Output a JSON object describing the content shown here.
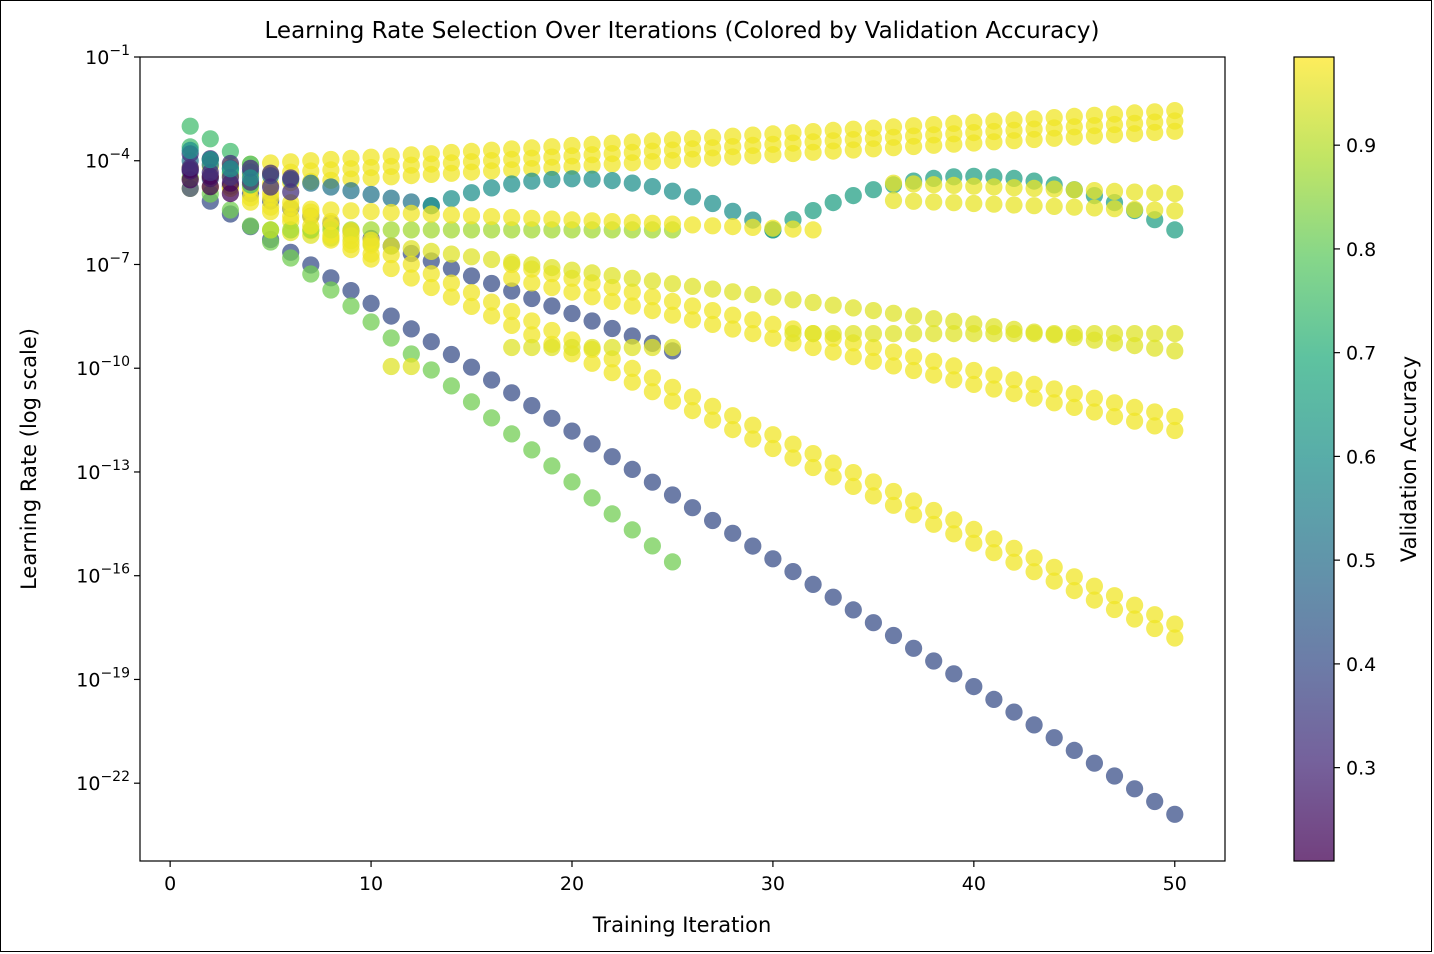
{
  "chart_data": {
    "type": "scatter",
    "title": "Learning Rate Selection Over Iterations (Colored by Validation Accuracy)",
    "xlabel": "Training Iteration",
    "ylabel": "Learning Rate (log scale)",
    "xlim": [
      -1.5,
      52.5
    ],
    "ylim_log10": [
      -24.25,
      -1
    ],
    "yscale": "log",
    "grid": false,
    "colormap": "viridis",
    "marker_alpha": 0.75,
    "x_ticks": [
      "0",
      "10",
      "20",
      "30",
      "40",
      "50"
    ],
    "y_ticks": [
      {
        "base": "10",
        "exp": "−1"
      },
      {
        "base": "10",
        "exp": "−4"
      },
      {
        "base": "10",
        "exp": "−7"
      },
      {
        "base": "10",
        "exp": "−10"
      },
      {
        "base": "10",
        "exp": "−13"
      },
      {
        "base": "10",
        "exp": "−16"
      },
      {
        "base": "10",
        "exp": "−19"
      },
      {
        "base": "10",
        "exp": "−22"
      }
    ],
    "colorbar": {
      "label": "Validation Accuracy",
      "range": [
        0.21,
        0.985
      ],
      "ticks": [
        "0.3",
        "0.4",
        "0.5",
        "0.6",
        "0.7",
        "0.8",
        "0.9"
      ]
    },
    "series": [
      {
        "x_start": 1,
        "x_end": 50,
        "log10_lr_start": -4.5,
        "log10_lr_end": -2.85,
        "shape": "line",
        "acc": 0.97,
        "jitter": 0.3,
        "copies": 3
      },
      {
        "x_start": 1,
        "x_end": 50,
        "log10_lr_start": -4.8,
        "log10_lr_end": -22.9,
        "shape": "line",
        "acc": 0.4
      },
      {
        "x_start": 1,
        "x_end": 25,
        "log10_lr_start": -4.5,
        "log10_lr_end": -15.6,
        "shape": "line",
        "acc": 0.82
      },
      {
        "x_start": 1,
        "x_end": 25,
        "log10_lr_start": -4.3,
        "log10_lr_end": -9.5,
        "shape": "line",
        "acc": 0.4
      },
      {
        "x_start": 1,
        "x_end": 13,
        "log10_lr_start": -4.0,
        "log10_lr_end": -5.3,
        "shape": "line",
        "acc": 0.52
      },
      {
        "x_start": 13,
        "x_end": 30,
        "log10_lr_start": -5.3,
        "log10_lr_end": -6.0,
        "shape": "arc",
        "peak": -4.55,
        "acc": 0.6
      },
      {
        "x_start": 30,
        "x_end": 50,
        "log10_lr_start": -6.0,
        "log10_lr_end": -6.0,
        "shape": "arc",
        "peak": -4.45,
        "acc": 0.65
      },
      {
        "x_start": 4,
        "x_end": 50,
        "log10_lr_start": -5.0,
        "log10_lr_end": -17.6,
        "shape": "line",
        "acc": 0.97,
        "jitter": 0.2,
        "copies": 2
      },
      {
        "x_start": 17,
        "x_end": 50,
        "log10_lr_start": -7.2,
        "log10_lr_end": -11.6,
        "shape": "line",
        "acc": 0.97,
        "jitter": 0.2,
        "copies": 2
      },
      {
        "x_start": 5,
        "x_end": 50,
        "log10_lr_start": -6.0,
        "log10_lr_end": -9.5,
        "shape": "line",
        "acc": 0.95
      },
      {
        "x_start": 31,
        "x_end": 50,
        "log10_lr_start": -9.0,
        "log10_lr_end": -9.0,
        "shape": "line",
        "acc": 0.95
      },
      {
        "x_start": 17,
        "x_end": 25,
        "log10_lr_start": -9.4,
        "log10_lr_end": -9.4,
        "shape": "line",
        "acc": 0.95
      },
      {
        "x_start": 11,
        "x_end": 12,
        "log10_lr_start": -9.95,
        "log10_lr_end": -9.95,
        "shape": "line",
        "acc": 0.95
      },
      {
        "x_start": 36,
        "x_end": 50,
        "log10_lr_start": -4.9,
        "log10_lr_end": -5.2,
        "shape": "line",
        "acc": 0.96,
        "jitter": 0.25,
        "copies": 2
      },
      {
        "x_start": 5,
        "x_end": 25,
        "log10_lr_start": -6.0,
        "log10_lr_end": -6.0,
        "shape": "line",
        "acc": 0.88
      },
      {
        "x_start": 7,
        "x_end": 32,
        "log10_lr_start": -5.4,
        "log10_lr_end": -6.0,
        "shape": "line",
        "acc": 0.97
      },
      {
        "x_start": 3,
        "x_end": 10,
        "log10_lr_start": -4.6,
        "log10_lr_end": -6.5,
        "shape": "line",
        "acc": 0.97,
        "jitter": 0.2,
        "copies": 2
      },
      {
        "x_start": 1,
        "x_end": 4,
        "log10_lr_start": -3.3,
        "log10_lr_end": -4.4,
        "shape": "line",
        "acc": 0.75,
        "jitter": 0.3,
        "copies": 2
      },
      {
        "x_start": 1,
        "x_end": 3,
        "log10_lr_start": -4.4,
        "log10_lr_end": -4.8,
        "shape": "line",
        "acc": 0.22,
        "jitter": 0.15,
        "copies": 2
      },
      {
        "x_start": 1,
        "x_end": 6,
        "log10_lr_start": -4.0,
        "log10_lr_end": -4.7,
        "shape": "line",
        "acc": 0.32,
        "jitter": 0.2,
        "copies": 2
      },
      {
        "x_start": 1,
        "x_end": 4,
        "log10_lr_start": -3.7,
        "log10_lr_end": -4.5,
        "shape": "line",
        "acc": 0.6
      }
    ]
  }
}
